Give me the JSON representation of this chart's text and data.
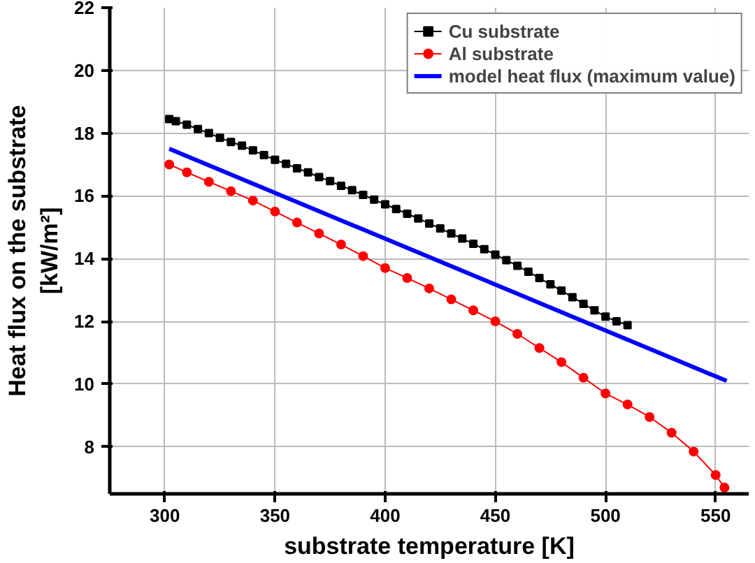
{
  "chart_data": {
    "type": "line",
    "xlabel": "substrate temperature [K]",
    "ylabel": "Heat flux on the substrate\n[kW/m²]",
    "xlim": [
      275,
      565
    ],
    "ylim": [
      6.5,
      22
    ],
    "xticks": [
      300,
      350,
      400,
      450,
      500,
      550
    ],
    "yticks": [
      8,
      10,
      12,
      14,
      16,
      18,
      20,
      22
    ],
    "grid": true,
    "legend": "top right",
    "series": [
      {
        "name": "Cu substrate",
        "color": "#000000",
        "marker": "square",
        "x": [
          302,
          305,
          310,
          315,
          320,
          325,
          330,
          335,
          340,
          345,
          350,
          355,
          360,
          365,
          370,
          375,
          380,
          385,
          390,
          395,
          400,
          405,
          410,
          415,
          420,
          425,
          430,
          435,
          440,
          445,
          450,
          455,
          460,
          465,
          470,
          475,
          480,
          485,
          490,
          495,
          500,
          505,
          510
        ],
        "values": [
          18.45,
          18.38,
          18.27,
          18.13,
          18.0,
          17.85,
          17.72,
          17.6,
          17.45,
          17.3,
          17.15,
          17.02,
          16.88,
          16.75,
          16.6,
          16.47,
          16.32,
          16.18,
          16.03,
          15.88,
          15.73,
          15.58,
          15.43,
          15.28,
          15.12,
          14.96,
          14.8,
          14.64,
          14.47,
          14.3,
          14.13,
          13.95,
          13.77,
          13.58,
          13.38,
          13.18,
          12.98,
          12.77,
          12.56,
          12.35,
          12.15,
          12.0,
          11.88
        ]
      },
      {
        "name": "Al substrate",
        "color": "#ff0000",
        "marker": "circle",
        "x": [
          302,
          310,
          320,
          330,
          340,
          350,
          360,
          370,
          380,
          390,
          400,
          410,
          420,
          430,
          440,
          450,
          460,
          470,
          480,
          490,
          500,
          510,
          520,
          530,
          540,
          550,
          554
        ],
        "values": [
          17.0,
          16.75,
          16.45,
          16.15,
          15.85,
          15.5,
          15.15,
          14.8,
          14.45,
          14.08,
          13.7,
          13.38,
          13.05,
          12.7,
          12.35,
          12.0,
          11.6,
          11.15,
          10.7,
          10.2,
          9.7,
          9.35,
          8.95,
          8.45,
          7.85,
          7.1,
          6.7
        ]
      },
      {
        "name": "model heat flux (maximum value)",
        "color": "#0000ff",
        "marker": "none",
        "x": [
          302,
          555
        ],
        "values": [
          17.5,
          10.1
        ]
      }
    ]
  }
}
